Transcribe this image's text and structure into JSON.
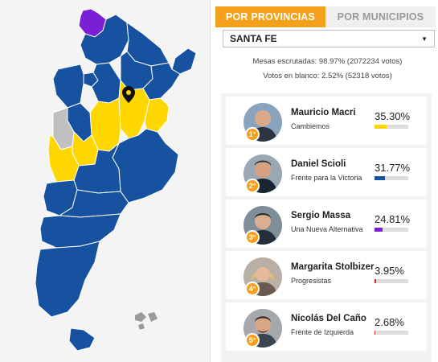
{
  "tabs": {
    "provincias": "POR PROVINCIAS",
    "municipios": "POR MUNICIPIOS"
  },
  "province_select": {
    "value": "SANTA FE"
  },
  "stats": {
    "mesas": "Mesas escrutadas: 98.97% (2072234 votos)",
    "blanco": "Votos en blanco: 2.52% (52318 votos)"
  },
  "colors": {
    "accent": "#f5a01a",
    "cambiemos": "#ffd700",
    "fpv": "#1652a0",
    "una": "#7b1fd6",
    "progresistas": "#d72b2b",
    "izquierda": "#d72b2b",
    "unavailable": "#c0c0c0"
  },
  "candidates": [
    {
      "rank": "1°",
      "name": "Mauricio Macri",
      "party": "Cambiemos",
      "pct": "35.30%",
      "value": 35.3,
      "color": "#ffd700"
    },
    {
      "rank": "2°",
      "name": "Daniel Scioli",
      "party": "Frente para la Victoria",
      "pct": "31.77%",
      "value": 31.77,
      "color": "#1652a0"
    },
    {
      "rank": "3°",
      "name": "Sergio Massa",
      "party": "Una Nueva Alternativa",
      "pct": "24.81%",
      "value": 24.81,
      "color": "#7b1fd6"
    },
    {
      "rank": "4°",
      "name": "Margarita Stolbizer",
      "party": "Progresistas",
      "pct": "3.95%",
      "value": 3.95,
      "color": "#d72b2b"
    },
    {
      "rank": "5°",
      "name": "Nicolás Del Caño",
      "party": "Frente de Izquierda",
      "pct": "2.68%",
      "value": 2.68,
      "color": "#d72b2b"
    }
  ]
}
